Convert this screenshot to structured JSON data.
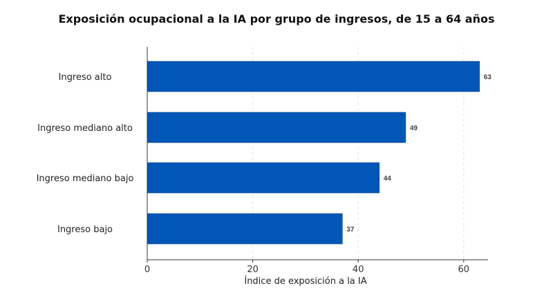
{
  "chart_data": {
    "type": "bar",
    "orientation": "horizontal",
    "title": "Exposición ocupacional a la IA por grupo de ingresos, de 15 a 64 años",
    "categories": [
      "Ingreso alto",
      "Ingreso mediano alto",
      "Ingreso mediano bajo",
      "Ingreso bajo"
    ],
    "values": [
      63,
      49,
      44,
      37
    ],
    "xlabel": "Índice de exposición a la IA",
    "ylabel": "",
    "xlim": [
      0,
      65
    ],
    "xticks": [
      0,
      20,
      40,
      60
    ],
    "grid": true,
    "bar_color": "#0057B8"
  }
}
